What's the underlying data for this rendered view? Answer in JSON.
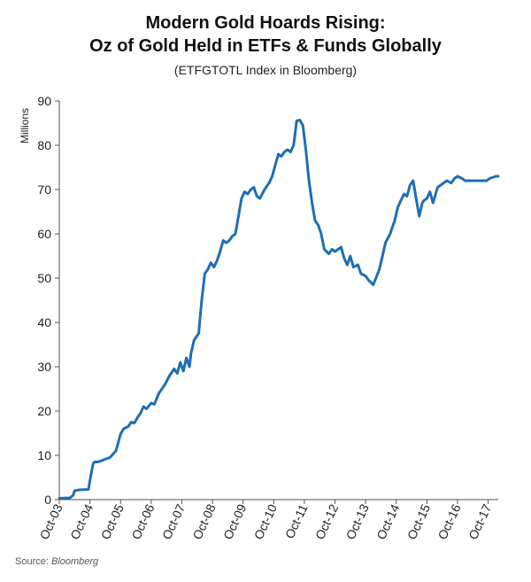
{
  "source": {
    "label": "Source:",
    "name": "Bloomberg"
  },
  "chart_data": {
    "type": "line",
    "title_lines": [
      "Modern Gold Hoards Rising:",
      "Oz of Gold Held in ETFs & Funds Globally"
    ],
    "subtitle": "(ETFGTOTL Index in Bloomberg)",
    "xlabel": "",
    "ylabel": "Millions",
    "ylim": [
      0,
      90
    ],
    "yticks": [
      0,
      10,
      20,
      30,
      40,
      50,
      60,
      70,
      80,
      90
    ],
    "xlim": [
      2003.75,
      2018.08
    ],
    "xticks": [
      {
        "label": "Oct-03",
        "value": 2003.75
      },
      {
        "label": "Oct-04",
        "value": 2004.75
      },
      {
        "label": "Oct-05",
        "value": 2005.75
      },
      {
        "label": "Oct-06",
        "value": 2006.75
      },
      {
        "label": "Oct-07",
        "value": 2007.75
      },
      {
        "label": "Oct-08",
        "value": 2008.75
      },
      {
        "label": "Oct-09",
        "value": 2009.75
      },
      {
        "label": "Oct-10",
        "value": 2010.75
      },
      {
        "label": "Oct-11",
        "value": 2011.75
      },
      {
        "label": "Oct-12",
        "value": 2012.75
      },
      {
        "label": "Oct-13",
        "value": 2013.75
      },
      {
        "label": "Oct-14",
        "value": 2014.75
      },
      {
        "label": "Oct-15",
        "value": 2015.75
      },
      {
        "label": "Oct-16",
        "value": 2016.75
      },
      {
        "label": "Oct-17",
        "value": 2017.75
      }
    ],
    "grid": false,
    "line_color": "#1f6eb5",
    "series": [
      {
        "x": [
          2003.75,
          2004.1,
          2004.2,
          2004.25,
          2004.4,
          2004.7,
          2004.78,
          2004.85,
          2004.9,
          2005.0,
          2005.1,
          2005.2,
          2005.4,
          2005.6,
          2005.75,
          2005.85,
          2006.0,
          2006.1,
          2006.2,
          2006.3,
          2006.4,
          2006.5,
          2006.6,
          2006.75,
          2006.85,
          2007.0,
          2007.2,
          2007.35,
          2007.5,
          2007.6,
          2007.7,
          2007.8,
          2007.9,
          2008.0,
          2008.05,
          2008.15,
          2008.2,
          2008.3,
          2008.4,
          2008.5,
          2008.6,
          2008.7,
          2008.8,
          2008.9,
          2009.0,
          2009.1,
          2009.2,
          2009.3,
          2009.4,
          2009.5,
          2009.6,
          2009.7,
          2009.8,
          2009.9,
          2010.0,
          2010.1,
          2010.2,
          2010.3,
          2010.45,
          2010.6,
          2010.7,
          2010.8,
          2010.9,
          2011.0,
          2011.1,
          2011.2,
          2011.3,
          2011.4,
          2011.5,
          2011.6,
          2011.7,
          2011.8,
          2011.9,
          2012.0,
          2012.1,
          2012.2,
          2012.3,
          2012.4,
          2012.55,
          2012.65,
          2012.75,
          2012.85,
          2012.95,
          2013.05,
          2013.15,
          2013.25,
          2013.35,
          2013.5,
          2013.6,
          2013.75,
          2013.85,
          2014.0,
          2014.2,
          2014.4,
          2014.55,
          2014.7,
          2014.8,
          2014.9,
          2015.0,
          2015.1,
          2015.2,
          2015.3,
          2015.4,
          2015.5,
          2015.6,
          2015.65,
          2015.75,
          2015.85,
          2015.95,
          2016.1,
          2016.2,
          2016.3,
          2016.4,
          2016.55,
          2016.65,
          2016.75,
          2016.9,
          2017.0,
          2017.2,
          2017.3,
          2017.45,
          2017.55,
          2017.7,
          2017.8,
          2018.0,
          2018.08
        ],
        "values": [
          0.3,
          0.4,
          1.0,
          2.0,
          2.2,
          2.3,
          5.5,
          8.0,
          8.5,
          8.5,
          8.7,
          9.0,
          9.5,
          11.0,
          14.8,
          16.0,
          16.5,
          17.5,
          17.3,
          18.5,
          19.5,
          21.0,
          20.5,
          21.8,
          21.5,
          24.0,
          26.0,
          28.0,
          29.5,
          28.5,
          31.0,
          29.0,
          32.0,
          30.0,
          33.0,
          36.0,
          36.5,
          37.5,
          45.0,
          51.0,
          52.0,
          53.5,
          52.5,
          54.0,
          56.0,
          58.5,
          58.0,
          58.5,
          59.5,
          60.0,
          64.0,
          68.0,
          69.5,
          69.0,
          70.0,
          70.5,
          68.5,
          68.0,
          70.0,
          71.5,
          73.0,
          75.5,
          78.0,
          77.5,
          78.5,
          79.0,
          78.5,
          80.0,
          85.5,
          85.7,
          84.5,
          79.0,
          72.0,
          67.0,
          63.0,
          62.0,
          60.0,
          56.5,
          55.5,
          56.5,
          56.0,
          56.5,
          57.0,
          54.5,
          53.0,
          55.0,
          52.5,
          53.0,
          51.0,
          50.5,
          49.5,
          48.5,
          52.0,
          58.0,
          60.0,
          63.0,
          66.0,
          67.5,
          69.0,
          68.5,
          71.0,
          72.0,
          68.0,
          64.0,
          67.0,
          67.5,
          68.0,
          69.5,
          67.0,
          70.5,
          71.0,
          71.5,
          72.0,
          71.5,
          72.5,
          73.0,
          72.5,
          72.0,
          72.0,
          72.0,
          72.0,
          72.0,
          72.0,
          72.5,
          73.0,
          73.0
        ]
      }
    ]
  }
}
